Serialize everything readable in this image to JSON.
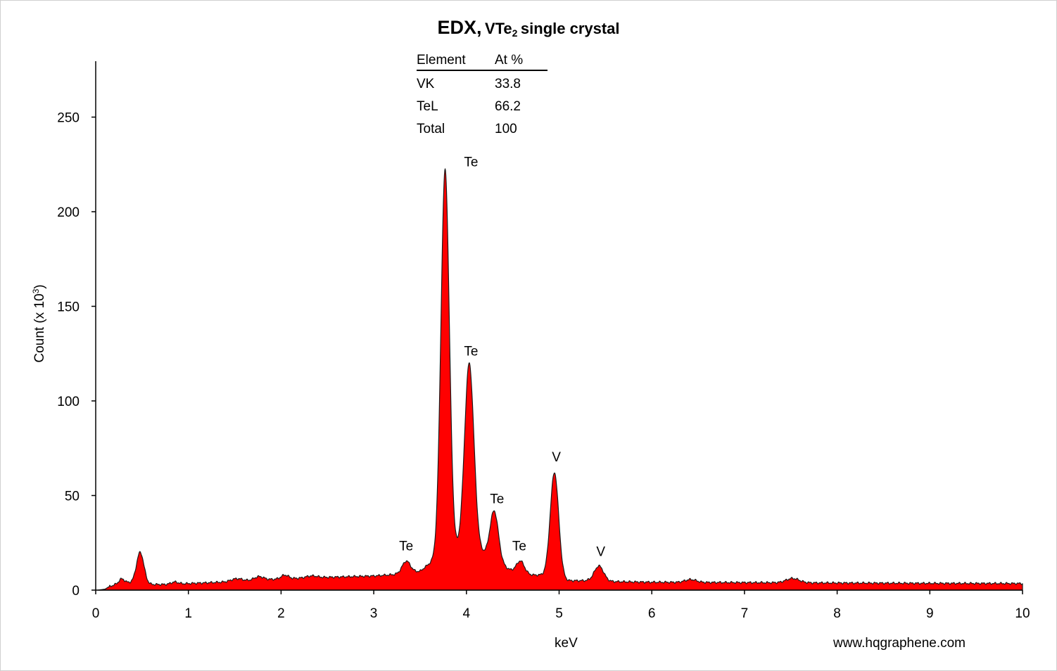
{
  "title": {
    "main": "EDX,",
    "compound_base": "VTe",
    "compound_sub": "2",
    "suffix": "single crystal"
  },
  "website": "www.hqgraphene.com",
  "table": {
    "headers": [
      "Element",
      "At %"
    ],
    "rows": [
      {
        "element": "VK",
        "value": "33.8"
      },
      {
        "element": "TeL",
        "value": "66.2"
      },
      {
        "element": "Total",
        "value": "100"
      }
    ]
  },
  "colors": {
    "fill": "#ff0000",
    "stroke": "#1a1a1a",
    "axis": "#000000"
  },
  "chart_data": {
    "type": "area",
    "title": "EDX, VTe2 single crystal",
    "xlabel": "keV",
    "ylabel_base": "Count (x 10",
    "ylabel_sup": "3",
    "ylabel_end": ")",
    "xlim": [
      0,
      10
    ],
    "ylim": [
      0,
      275
    ],
    "xticks": [
      "0",
      "1",
      "2",
      "3",
      "4",
      "5",
      "6",
      "7",
      "8",
      "9",
      "10"
    ],
    "yticks": [
      "0",
      "50",
      "100",
      "150",
      "200",
      "250"
    ],
    "ytick_values": [
      0,
      50,
      100,
      150,
      200,
      250
    ],
    "grid": false,
    "baseline": [
      [
        0.02,
        0
      ],
      [
        0.1,
        0.5
      ],
      [
        0.15,
        2
      ],
      [
        0.22,
        3
      ],
      [
        0.35,
        4
      ],
      [
        0.6,
        3
      ],
      [
        0.8,
        3
      ],
      [
        1.0,
        3.5
      ],
      [
        1.5,
        4.5
      ],
      [
        1.8,
        5.5
      ],
      [
        2.3,
        6.5
      ],
      [
        3.0,
        7.5
      ],
      [
        3.3,
        8.5
      ],
      [
        3.5,
        10
      ],
      [
        3.65,
        16
      ],
      [
        3.8,
        20
      ],
      [
        3.95,
        22
      ],
      [
        4.1,
        22
      ],
      [
        4.3,
        16
      ],
      [
        4.55,
        8
      ],
      [
        4.8,
        8
      ],
      [
        4.9,
        8
      ],
      [
        5.1,
        5
      ],
      [
        5.3,
        5
      ],
      [
        5.6,
        4.5
      ],
      [
        6.0,
        4.2
      ],
      [
        7.0,
        4
      ],
      [
        8.0,
        3.8
      ],
      [
        9.0,
        3.6
      ],
      [
        10.0,
        3.5
      ]
    ],
    "peaks": [
      {
        "x": 0.28,
        "h": 2.5,
        "w": 0.03
      },
      {
        "x": 0.48,
        "h": 16.5,
        "w": 0.04
      },
      {
        "x": 0.85,
        "h": 1.2,
        "w": 0.04
      },
      {
        "x": 1.52,
        "h": 1.5,
        "w": 0.06
      },
      {
        "x": 1.76,
        "h": 1.8,
        "w": 0.05
      },
      {
        "x": 2.04,
        "h": 2.0,
        "w": 0.04
      },
      {
        "x": 2.33,
        "h": 1.0,
        "w": 0.06
      },
      {
        "x": 3.35,
        "h": 6.5,
        "w": 0.045
      },
      {
        "x": 3.77,
        "h": 203,
        "w": 0.045
      },
      {
        "x": 4.03,
        "h": 98,
        "w": 0.05
      },
      {
        "x": 4.3,
        "h": 26,
        "w": 0.045
      },
      {
        "x": 4.58,
        "h": 7.5,
        "w": 0.045
      },
      {
        "x": 4.95,
        "h": 55,
        "w": 0.045
      },
      {
        "x": 5.43,
        "h": 8,
        "w": 0.05
      },
      {
        "x": 6.42,
        "h": 1.5,
        "w": 0.06
      },
      {
        "x": 7.52,
        "h": 2.3,
        "w": 0.07
      }
    ],
    "annotations": [
      {
        "text": "Te",
        "x": 4.05,
        "y": 224
      },
      {
        "text": "Te",
        "x": 4.05,
        "y": 124
      },
      {
        "text": "Te",
        "x": 4.33,
        "y": 46
      },
      {
        "text": "Te",
        "x": 3.35,
        "y": 21
      },
      {
        "text": "Te",
        "x": 4.57,
        "y": 21
      },
      {
        "text": "V",
        "x": 4.97,
        "y": 68
      },
      {
        "text": "V",
        "x": 5.45,
        "y": 18
      }
    ]
  }
}
